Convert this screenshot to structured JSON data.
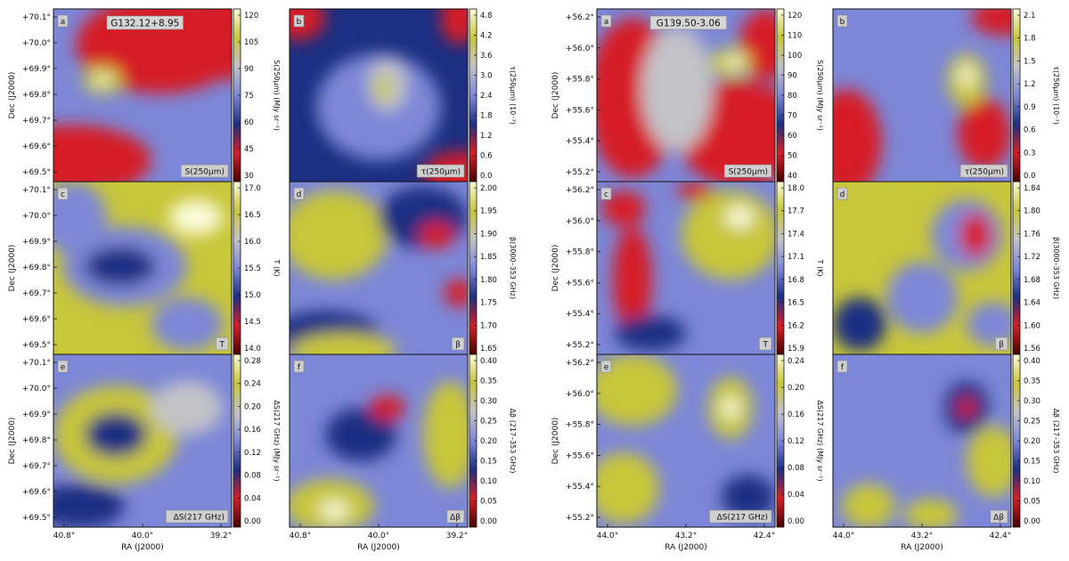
{
  "colormap": [
    "#4b0000",
    "#d51f28",
    "#1c2f82",
    "#7d87d7",
    "#c3c3c8",
    "#c8c63a",
    "#fbfbda"
  ],
  "chart_data": [
    {
      "type": "heatmap",
      "title": "G132.12+8.95",
      "xlabel": "RA (J2000)",
      "ylabel": "Dec (J2000)",
      "xticks": [
        "40.8°",
        "40.0°",
        "39.2°"
      ],
      "yticks": [
        "+70.1°",
        "+70.0°",
        "+69.9°",
        "+69.8°",
        "+69.7°",
        "+69.6°",
        "+69.5°"
      ],
      "panels": [
        {
          "letter": "a",
          "label": "S(250μm)",
          "cbar_label": "S(250μm) (MJy sr⁻¹)",
          "cbar_ticks": [
            "120",
            "105",
            "90",
            "75",
            "60",
            "45",
            "30"
          ]
        },
        {
          "letter": "b",
          "label": "τ(250μm)",
          "cbar_label": "τ(250μm) (10⁻³)",
          "cbar_ticks": [
            "4.8",
            "4.2",
            "3.6",
            "3.0",
            "2.4",
            "1.8",
            "1.2",
            "0.6",
            "0.0"
          ]
        },
        {
          "letter": "c",
          "label": "T",
          "cbar_label": "T (K)",
          "cbar_ticks": [
            "17.0",
            "16.5",
            "16.0",
            "15.5",
            "15.0",
            "14.5",
            "14.0"
          ]
        },
        {
          "letter": "d",
          "label": "β",
          "cbar_label": "β(3000–353 GHz)",
          "cbar_ticks": [
            "2.00",
            "1.95",
            "1.90",
            "1.85",
            "1.80",
            "1.75",
            "1.70",
            "1.65"
          ]
        },
        {
          "letter": "e",
          "label": "ΔS(217 GHz)",
          "cbar_label": "ΔS(217 GHz) (MJy sr⁻¹)",
          "cbar_ticks": [
            "0.28",
            "0.24",
            "0.20",
            "0.16",
            "0.12",
            "0.08",
            "0.04",
            "0.00"
          ]
        },
        {
          "letter": "f",
          "label": "Δβ",
          "cbar_label": "Δβ (217–353 GHz)",
          "cbar_ticks": [
            "0.40",
            "0.35",
            "0.30",
            "0.25",
            "0.20",
            "0.15",
            "0.10",
            "0.05",
            "0.00"
          ]
        }
      ]
    },
    {
      "type": "heatmap",
      "title": "G139.50-3.06",
      "xlabel": "RA (J2000)",
      "ylabel": "Dec (J2000)",
      "xticks": [
        "44.0°",
        "43.2°",
        "42.4°"
      ],
      "yticks": [
        "+56.2°",
        "+56.0°",
        "+55.8°",
        "+55.6°",
        "+55.4°",
        "+55.2°"
      ],
      "panels": [
        {
          "letter": "a",
          "label": "S(250μm)",
          "cbar_label": "S(250μm) (MJy sr⁻¹)",
          "cbar_ticks": [
            "120",
            "110",
            "100",
            "90",
            "80",
            "70",
            "60",
            "50",
            "40"
          ]
        },
        {
          "letter": "b",
          "label": "τ(250μm)",
          "cbar_label": "τ(250μm) (10⁻³)",
          "cbar_ticks": [
            "2.1",
            "1.8",
            "1.5",
            "1.2",
            "0.9",
            "0.6",
            "0.3",
            "0.0"
          ]
        },
        {
          "letter": "c",
          "label": "T",
          "cbar_label": "T (K)",
          "cbar_ticks": [
            "18.0",
            "17.7",
            "17.4",
            "17.1",
            "16.8",
            "16.5",
            "16.2",
            "15.9"
          ]
        },
        {
          "letter": "d",
          "label": "β",
          "cbar_label": "β(3000–353 GHz)",
          "cbar_ticks": [
            "1.84",
            "1.80",
            "1.76",
            "1.72",
            "1.68",
            "1.64",
            "1.60",
            "1.56"
          ]
        },
        {
          "letter": "e",
          "label": "ΔS(217 GHz)",
          "cbar_label": "ΔS(217 GHz) (MJy sr⁻¹)",
          "cbar_ticks": [
            "0.24",
            "0.20",
            "0.16",
            "0.12",
            "0.08",
            "0.04",
            "0.00"
          ]
        },
        {
          "letter": "f",
          "label": "Δβ",
          "cbar_label": "Δβ (217–353 GHz)",
          "cbar_ticks": [
            "0.40",
            "0.35",
            "0.30",
            "0.25",
            "0.20",
            "0.15",
            "0.10",
            "0.05",
            "0.00"
          ]
        }
      ]
    }
  ]
}
